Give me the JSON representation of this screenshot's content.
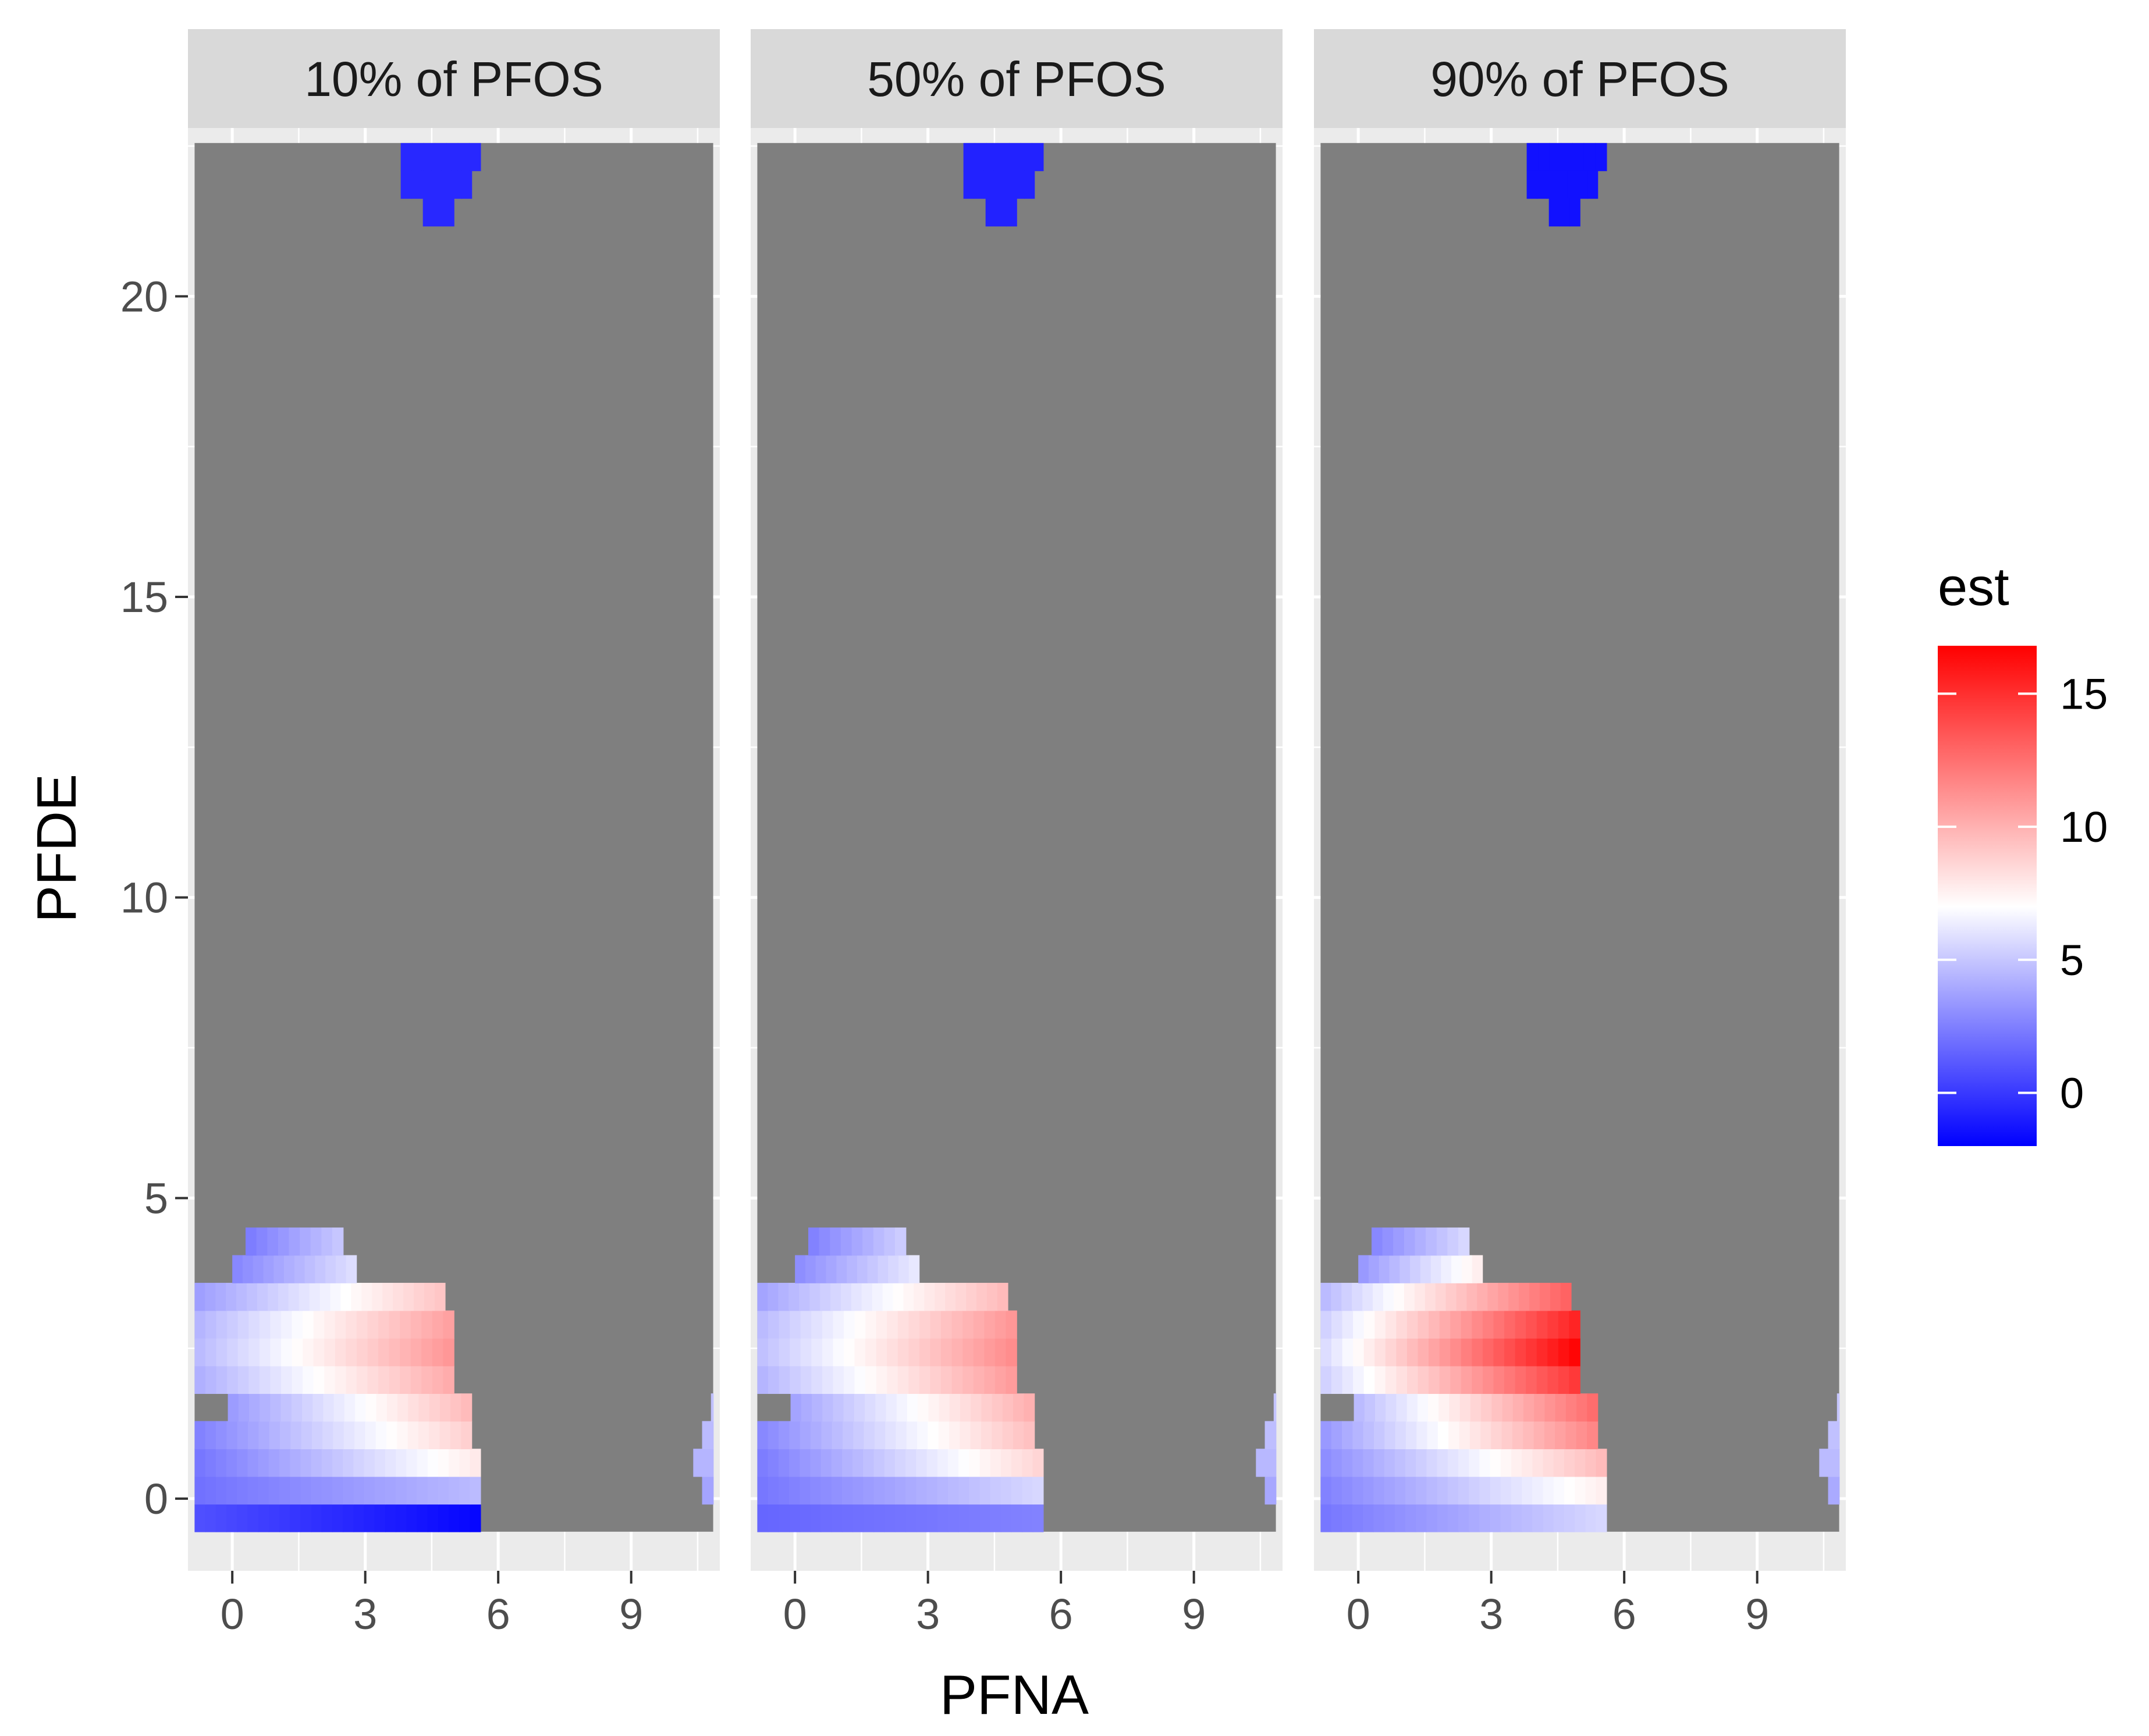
{
  "chart_data": {
    "type": "heatmap",
    "xlabel": "PFNA",
    "ylabel": "PFDE",
    "xlim": [
      -1,
      11
    ],
    "ylim": [
      -1.2,
      22.8
    ],
    "x_ticks": [
      0,
      3,
      6,
      9
    ],
    "y_ticks": [
      0,
      5,
      10,
      15,
      20
    ],
    "na_color": "#7f7f7f",
    "na_region": {
      "x": [
        -0.85,
        10.85
      ],
      "y": [
        -0.55,
        22.55
      ]
    },
    "legend": {
      "title": "est",
      "position": "right",
      "min": -2.0,
      "max": 16.8,
      "ticks": [
        0,
        5,
        10,
        15
      ],
      "colors": {
        "low": "#0000ff",
        "mid": "#ffffff",
        "high": "#ff0000"
      },
      "midpoint": 7.0
    },
    "grid_spec": {
      "cell_width": 0.24,
      "cell_height": 0.46,
      "row_centers": [
        -0.32,
        0.14,
        0.6,
        1.06,
        1.52,
        1.98,
        2.44,
        2.9,
        3.36,
        3.82,
        4.28
      ],
      "top_row_centers": [
        22.32,
        21.86,
        21.4
      ]
    },
    "panels": [
      {
        "title": "10% of PFOS",
        "regions": [
          {
            "y": -0.32,
            "x_start": -0.85,
            "x_end": 5.6,
            "v_start": 0.8,
            "v_end": -1.8
          },
          {
            "y": 0.14,
            "x_start": -0.85,
            "x_end": 5.6,
            "v_start": 2.0,
            "v_end": 4.6
          },
          {
            "y": 0.6,
            "x_start": -0.85,
            "x_end": 5.6,
            "v_start": 2.2,
            "v_end": 7.8
          },
          {
            "y": 1.06,
            "x_start": -0.85,
            "x_end": 5.4,
            "v_start": 2.6,
            "v_end": 8.8
          },
          {
            "y": 1.52,
            "x_start": -0.1,
            "x_end": 5.4,
            "v_start": 3.5,
            "v_end": 9.6
          },
          {
            "y": 1.98,
            "x_start": -0.85,
            "x_end": 5.0,
            "v_start": 4.2,
            "v_end": 10.2
          },
          {
            "y": 2.44,
            "x_start": -0.85,
            "x_end": 5.0,
            "v_start": 4.6,
            "v_end": 11.0
          },
          {
            "y": 2.9,
            "x_start": -0.85,
            "x_end": 5.0,
            "v_start": 4.4,
            "v_end": 10.6
          },
          {
            "y": 3.36,
            "x_start": -0.85,
            "x_end": 4.8,
            "v_start": 3.6,
            "v_end": 9.2
          },
          {
            "y": 3.82,
            "x_start": 0.0,
            "x_end": 2.8,
            "v_start": 2.8,
            "v_end": 5.8
          },
          {
            "y": 4.28,
            "x_start": 0.3,
            "x_end": 2.5,
            "v_start": 2.4,
            "v_end": 5.0
          },
          {
            "y": 0.14,
            "x_start": 10.6,
            "x_end": 10.85,
            "v_start": 3.8,
            "v_end": 3.8
          },
          {
            "y": 0.6,
            "x_start": 10.4,
            "x_end": 10.85,
            "v_start": 4.4,
            "v_end": 4.4
          },
          {
            "y": 1.06,
            "x_start": 10.6,
            "x_end": 10.85,
            "v_start": 4.6,
            "v_end": 4.6
          },
          {
            "y": 1.52,
            "x_start": 10.8,
            "x_end": 10.85,
            "v_start": 4.8,
            "v_end": 4.8
          },
          {
            "y": 22.32,
            "x_start": 3.8,
            "x_end": 5.6,
            "v_start": -0.6,
            "v_end": -0.6
          },
          {
            "y": 21.86,
            "x_start": 3.8,
            "x_end": 5.4,
            "v_start": -0.6,
            "v_end": -0.6
          },
          {
            "y": 21.4,
            "x_start": 4.3,
            "x_end": 5.0,
            "v_start": -0.6,
            "v_end": -0.6
          }
        ]
      },
      {
        "title": "50% of PFOS",
        "regions": [
          {
            "y": -0.32,
            "x_start": -0.85,
            "x_end": 5.6,
            "v_start": 1.6,
            "v_end": 2.6
          },
          {
            "y": 0.14,
            "x_start": -0.85,
            "x_end": 5.6,
            "v_start": 2.2,
            "v_end": 5.6
          },
          {
            "y": 0.6,
            "x_start": -0.85,
            "x_end": 5.6,
            "v_start": 2.4,
            "v_end": 8.6
          },
          {
            "y": 1.06,
            "x_start": -0.85,
            "x_end": 5.4,
            "v_start": 2.8,
            "v_end": 9.4
          },
          {
            "y": 1.52,
            "x_start": -0.1,
            "x_end": 5.4,
            "v_start": 3.8,
            "v_end": 10.0
          },
          {
            "y": 1.98,
            "x_start": -0.85,
            "x_end": 5.0,
            "v_start": 4.4,
            "v_end": 10.8
          },
          {
            "y": 2.44,
            "x_start": -0.85,
            "x_end": 5.0,
            "v_start": 4.8,
            "v_end": 11.4
          },
          {
            "y": 2.9,
            "x_start": -0.85,
            "x_end": 5.0,
            "v_start": 4.6,
            "v_end": 11.0
          },
          {
            "y": 3.36,
            "x_start": -0.85,
            "x_end": 4.8,
            "v_start": 3.8,
            "v_end": 9.6
          },
          {
            "y": 3.82,
            "x_start": 0.0,
            "x_end": 2.8,
            "v_start": 3.0,
            "v_end": 6.2
          },
          {
            "y": 4.28,
            "x_start": 0.3,
            "x_end": 2.5,
            "v_start": 2.6,
            "v_end": 5.2
          },
          {
            "y": 0.14,
            "x_start": 10.6,
            "x_end": 10.85,
            "v_start": 3.9,
            "v_end": 3.9
          },
          {
            "y": 0.6,
            "x_start": 10.4,
            "x_end": 10.85,
            "v_start": 4.5,
            "v_end": 4.5
          },
          {
            "y": 1.06,
            "x_start": 10.6,
            "x_end": 10.85,
            "v_start": 4.7,
            "v_end": 4.7
          },
          {
            "y": 1.52,
            "x_start": 10.8,
            "x_end": 10.85,
            "v_start": 4.9,
            "v_end": 4.9
          },
          {
            "y": 22.32,
            "x_start": 3.8,
            "x_end": 5.6,
            "v_start": -0.8,
            "v_end": -0.8
          },
          {
            "y": 21.86,
            "x_start": 3.8,
            "x_end": 5.4,
            "v_start": -0.8,
            "v_end": -0.8
          },
          {
            "y": 21.4,
            "x_start": 4.3,
            "x_end": 5.0,
            "v_start": -0.8,
            "v_end": -0.8
          }
        ]
      },
      {
        "title": "90% of PFOS",
        "regions": [
          {
            "y": -0.32,
            "x_start": -0.85,
            "x_end": 5.6,
            "v_start": 2.2,
            "v_end": 5.6
          },
          {
            "y": 0.14,
            "x_start": -0.85,
            "x_end": 5.6,
            "v_start": 2.6,
            "v_end": 7.6
          },
          {
            "y": 0.6,
            "x_start": -0.85,
            "x_end": 5.6,
            "v_start": 3.0,
            "v_end": 9.6
          },
          {
            "y": 1.06,
            "x_start": -0.85,
            "x_end": 5.4,
            "v_start": 3.4,
            "v_end": 11.6
          },
          {
            "y": 1.52,
            "x_start": -0.1,
            "x_end": 5.4,
            "v_start": 4.6,
            "v_end": 12.6
          },
          {
            "y": 1.98,
            "x_start": -0.85,
            "x_end": 5.0,
            "v_start": 5.4,
            "v_end": 14.6
          },
          {
            "y": 2.44,
            "x_start": -0.85,
            "x_end": 5.0,
            "v_start": 5.8,
            "v_end": 16.6
          },
          {
            "y": 2.9,
            "x_start": -0.85,
            "x_end": 5.0,
            "v_start": 5.4,
            "v_end": 15.4
          },
          {
            "y": 3.36,
            "x_start": -0.85,
            "x_end": 4.8,
            "v_start": 4.6,
            "v_end": 13.0
          },
          {
            "y": 3.82,
            "x_start": 0.0,
            "x_end": 2.8,
            "v_start": 3.4,
            "v_end": 7.6
          },
          {
            "y": 4.28,
            "x_start": 0.3,
            "x_end": 2.5,
            "v_start": 2.8,
            "v_end": 5.6
          },
          {
            "y": 0.14,
            "x_start": 10.6,
            "x_end": 10.85,
            "v_start": 4.0,
            "v_end": 4.0
          },
          {
            "y": 0.6,
            "x_start": 10.4,
            "x_end": 10.85,
            "v_start": 4.6,
            "v_end": 4.6
          },
          {
            "y": 1.06,
            "x_start": 10.6,
            "x_end": 10.85,
            "v_start": 4.8,
            "v_end": 4.8
          },
          {
            "y": 1.52,
            "x_start": 10.8,
            "x_end": 10.85,
            "v_start": 5.0,
            "v_end": 5.0
          },
          {
            "y": 22.32,
            "x_start": 3.8,
            "x_end": 5.6,
            "v_start": -1.4,
            "v_end": -1.4
          },
          {
            "y": 21.86,
            "x_start": 3.8,
            "x_end": 5.4,
            "v_start": -1.4,
            "v_end": -1.4
          },
          {
            "y": 21.4,
            "x_start": 4.3,
            "x_end": 5.0,
            "v_start": -1.4,
            "v_end": -1.4
          }
        ]
      }
    ]
  }
}
